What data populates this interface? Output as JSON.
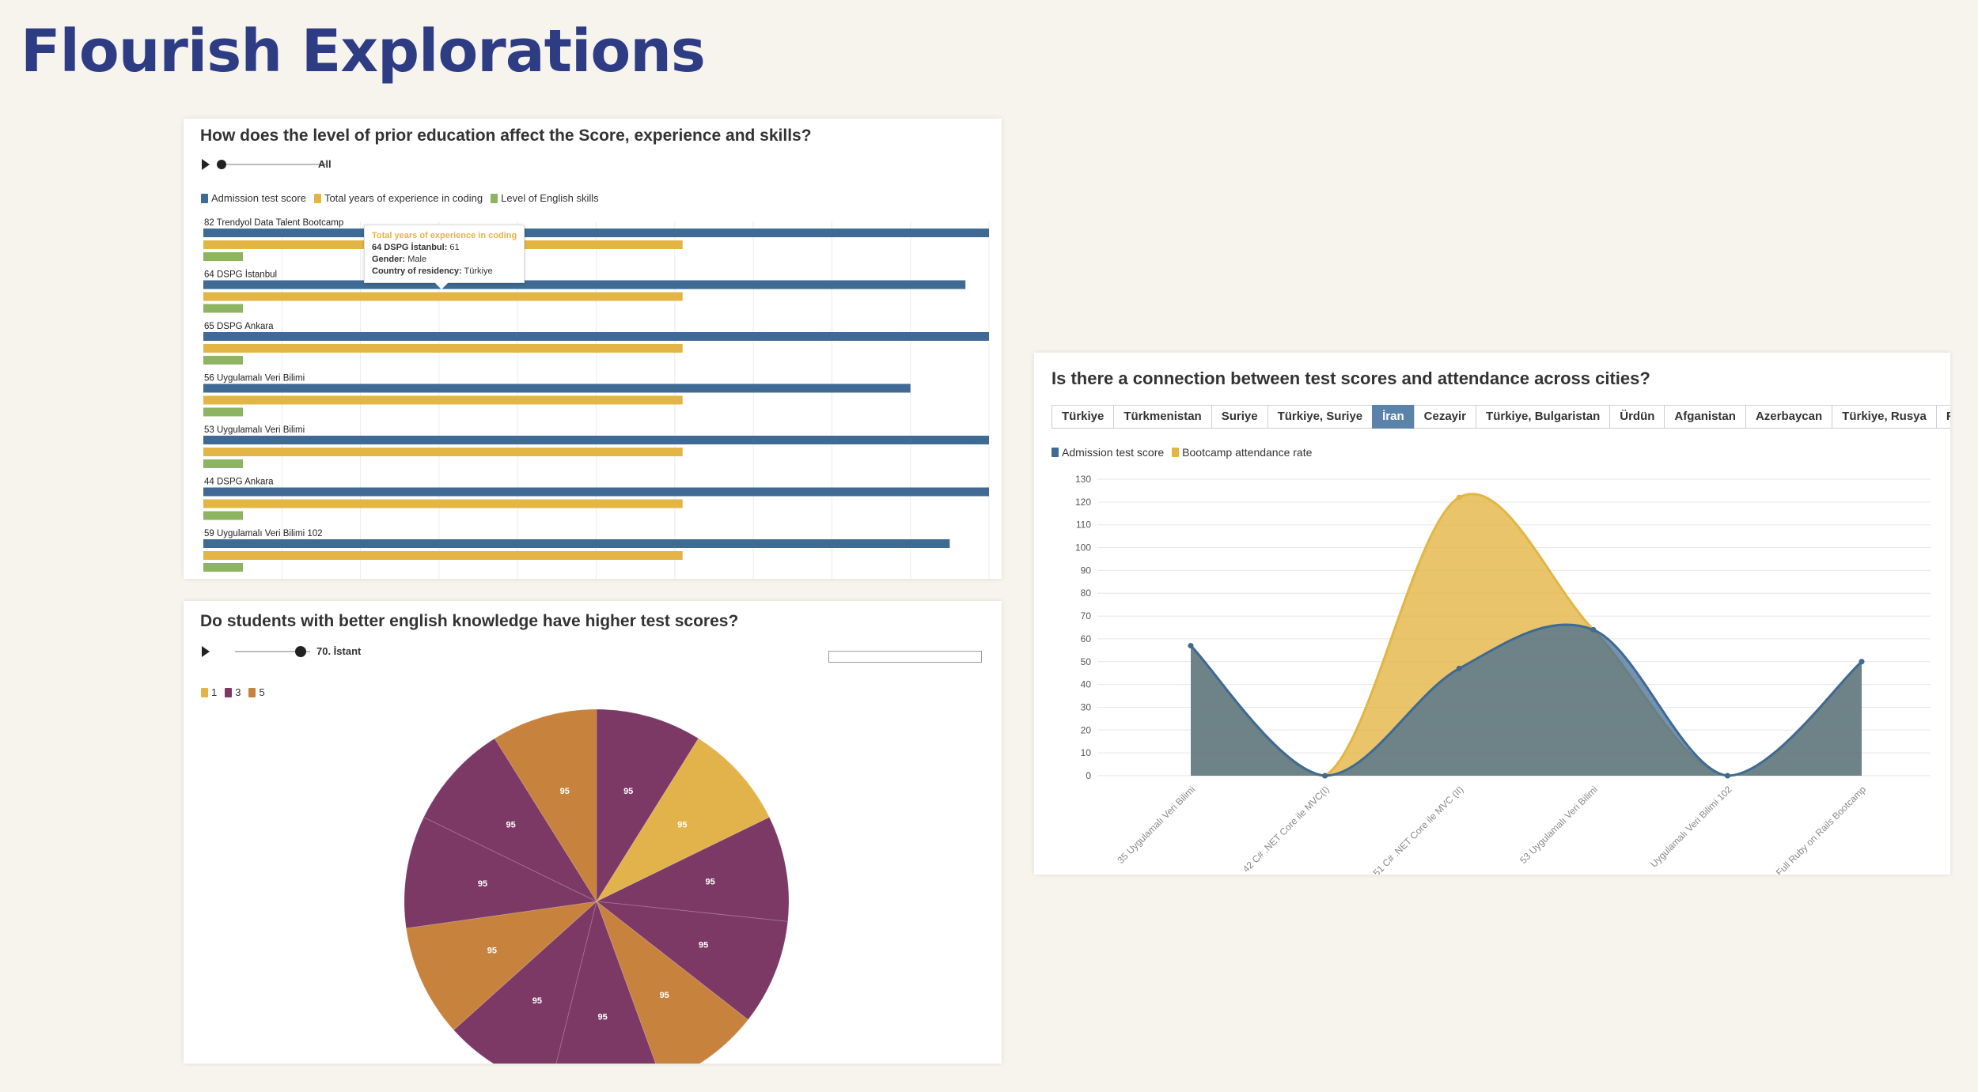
{
  "page": {
    "title": "Flourish Explorations"
  },
  "colors": {
    "blue": "#3e6a93",
    "yellow": "#e3b545",
    "green": "#8cb461",
    "purple": "#7c3966",
    "orange": "#c7833d",
    "pieYellow": "#e2b34a",
    "titleNavy": "#2e3c84"
  },
  "bar_panel": {
    "title": "How does the level of prior education affect the Score, experience and skills?",
    "slider_label": "All",
    "tooltip": {
      "title": "Total years of experience in coding",
      "line1_label": "64 DSPG İstanbul:",
      "line1_value": "61",
      "line2_label": "Gender:",
      "line2_value": "Male",
      "line3_label": "Country of residency:",
      "line3_value": "Türkiye"
    }
  },
  "pie_panel": {
    "title": "Do students with better english knowledge have higher test scores?",
    "slider_label": "70. İstant"
  },
  "area_panel": {
    "title": "Is there a connection between test scores and attendance across cities?",
    "tabs": [
      "Türkiye",
      "Türkmenistan",
      "Suriye",
      "Türkiye, Suriye",
      "İran",
      "Cezayir",
      "Türkiye, Bulgaristan",
      "Ürdün",
      "Afganistan",
      "Azerbaycan",
      "Türkiye, Rusya",
      "Filistin"
    ],
    "active_tab": 4
  },
  "chart_data": [
    {
      "type": "bar",
      "orientation": "horizontal",
      "categories": [
        "82 Trendyol Data Talent Bootcamp",
        "64 DSPG İstanbul",
        "65 DSPG Ankara",
        "56 Uygulamalı Veri Bilimi",
        "53 Uygulamalı Veri Bilimi",
        "44 DSPG Ankara",
        "59 Uygulamalı Veri Bilimi 102"
      ],
      "series": [
        {
          "name": "Admission test score",
          "color": "#3e6a93",
          "values": [
            100,
            97,
            100,
            90,
            100,
            100,
            95
          ]
        },
        {
          "name": "Total years of experience in coding",
          "color": "#e3b545",
          "values": [
            61,
            61,
            61,
            61,
            61,
            61,
            61
          ]
        },
        {
          "name": "Level of English skills",
          "color": "#8cb461",
          "values": [
            5,
            5,
            5,
            5,
            5,
            5,
            5
          ]
        }
      ],
      "xlim": [
        0,
        100
      ]
    },
    {
      "type": "pie",
      "legend": [
        "1",
        "3",
        "5"
      ],
      "legend_colors": [
        "#e2b34a",
        "#7c3966",
        "#c7833d"
      ],
      "slices": [
        {
          "value": 95,
          "label": "95",
          "category": "3"
        },
        {
          "value": 95,
          "label": "95",
          "category": "1"
        },
        {
          "value": 95,
          "label": "95",
          "category": "3"
        },
        {
          "value": 95,
          "label": "95",
          "category": "3"
        },
        {
          "value": 95,
          "label": "95",
          "category": "5"
        },
        {
          "value": 95,
          "label": "95",
          "category": "3"
        },
        {
          "value": 95,
          "label": "95",
          "category": "3"
        },
        {
          "value": 95,
          "label": "95",
          "category": "5"
        },
        {
          "value": 95,
          "label": "95",
          "category": "3"
        },
        {
          "value": 95,
          "label": "95",
          "category": "3"
        },
        {
          "value": 95,
          "label": "95",
          "category": "5"
        }
      ]
    },
    {
      "type": "area",
      "categories": [
        "35 Uygulamalı Veri Bilimi",
        "42 C# .NET Core ile MVC(I)",
        "51 C# .NET Core ile MVC (II)",
        "53 Uygulamalı Veri Bilimi",
        "Uygulamalı Veri Bilimi 102",
        "Full Ruby on Rails Bootcamp"
      ],
      "series": [
        {
          "name": "Admission test score",
          "color": "#3e6a93",
          "values": [
            57,
            0,
            47,
            64,
            0,
            50
          ]
        },
        {
          "name": "Bootcamp attendance rate",
          "color": "#e3b545",
          "values": [
            57,
            0,
            122,
            64,
            0,
            50
          ]
        }
      ],
      "yticks": [
        0,
        10,
        20,
        30,
        40,
        50,
        60,
        70,
        80,
        90,
        100,
        110,
        120,
        130
      ],
      "ylim": [
        0,
        130
      ],
      "grid": true
    }
  ]
}
